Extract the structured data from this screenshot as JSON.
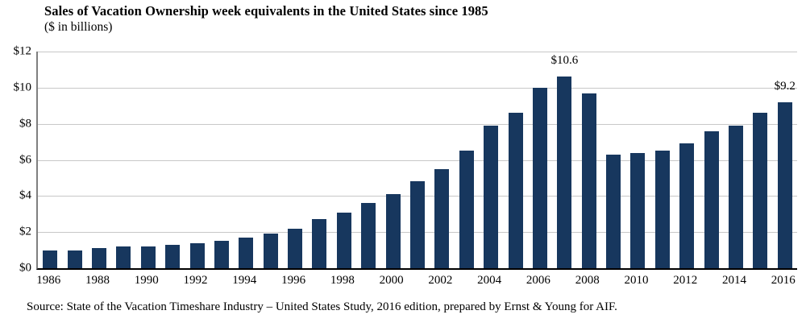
{
  "chart_data": {
    "type": "bar",
    "title": "Sales of Vacation Ownership week equivalents in the United States since 1985",
    "subtitle": "($ in billions)",
    "source": "Source: State of the Vacation Timeshare Industry – United States Study, 2016 edition,  prepared by Ernst & Young for AIF.",
    "categories": [
      "1986",
      "1987",
      "1988",
      "1989",
      "1990",
      "1991",
      "1992",
      "1993",
      "1994",
      "1995",
      "1996",
      "1997",
      "1998",
      "1999",
      "2000",
      "2001",
      "2002",
      "2003",
      "2004",
      "2005",
      "2006",
      "2007",
      "2008",
      "2009",
      "2010",
      "2011",
      "2012",
      "2013",
      "2014",
      "2015",
      "2016"
    ],
    "values": [
      1.0,
      1.0,
      1.1,
      1.2,
      1.2,
      1.3,
      1.4,
      1.5,
      1.7,
      1.9,
      2.2,
      2.7,
      3.1,
      3.6,
      4.1,
      4.8,
      5.5,
      6.5,
      7.9,
      8.6,
      10.0,
      10.6,
      9.7,
      6.3,
      6.4,
      6.5,
      6.9,
      7.6,
      7.9,
      8.6,
      9.2
    ],
    "xlabel": "",
    "ylabel": "",
    "ylim": [
      0,
      12
    ],
    "grid": true,
    "legend_position": "none",
    "y_tick_values": [
      0,
      2,
      4,
      6,
      8,
      10,
      12
    ],
    "y_tick_labels": [
      "$0",
      "$2",
      "$4",
      "$6",
      "$8",
      "$10",
      "$12"
    ],
    "x_tick_labels": [
      "1986",
      "1988",
      "1990",
      "1992",
      "1994",
      "1996",
      "1998",
      "2000",
      "2002",
      "2004",
      "2006",
      "2008",
      "2010",
      "2012",
      "2014",
      "2016"
    ],
    "annotations": [
      {
        "category": "2007",
        "text": "$10.6"
      },
      {
        "category": "2016",
        "text": "$9.2"
      }
    ],
    "colors": {
      "bar": "#17375e",
      "gridline": "#c8c8c8",
      "y_axis_line": "#7f7f7f",
      "baseline": "#000000",
      "text": "#000000"
    }
  }
}
